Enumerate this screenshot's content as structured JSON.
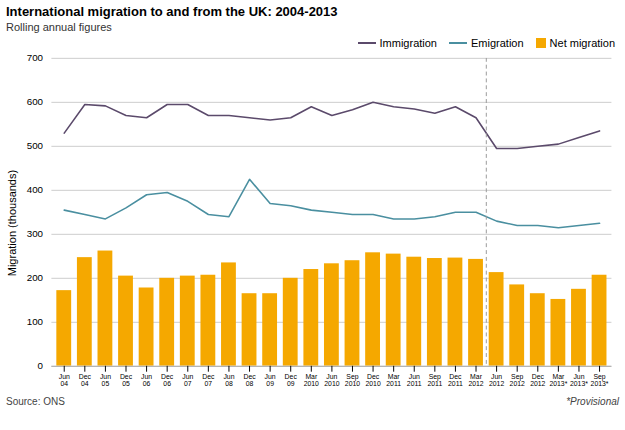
{
  "chart_data": {
    "type": "bar",
    "title": "International migration to and from the UK: 2004-2013",
    "subtitle": "Rolling annual figures",
    "ylabel": "Migration (thousands)",
    "source": "Source: ONS",
    "note": "*Provisional",
    "categories": [
      "Jun\n04",
      "Dec\n04",
      "Jun\n05",
      "Dec\n05",
      "Jun\n06",
      "Dec\n06",
      "Jun\n07",
      "Dec\n07",
      "Jun\n08",
      "Dec\n08",
      "Jun\n09",
      "Dec\n09",
      "Mar\n2010",
      "Jun\n2010",
      "Sep\n2010",
      "Dec\n2010",
      "Mar\n2011",
      "Jun\n2011",
      "Sep\n2011",
      "Dec\n2011",
      "Mar\n2012",
      "Jun\n2012",
      "Sep\n2012",
      "Dec\n2012",
      "Mar\n2013*",
      "Jun\n2013*",
      "Sep\n2013*"
    ],
    "series": [
      {
        "name": "Immigration",
        "type": "line",
        "color": "#5b4a6b",
        "values": [
          530,
          595,
          592,
          570,
          565,
          595,
          595,
          570,
          570,
          565,
          560,
          565,
          590,
          570,
          583,
          600,
          590,
          585,
          575,
          590,
          565,
          495,
          495,
          500,
          505,
          520,
          535
        ]
      },
      {
        "name": "Emigration",
        "type": "line",
        "color": "#4a8fa0",
        "values": [
          355,
          345,
          335,
          360,
          390,
          395,
          375,
          345,
          340,
          425,
          370,
          365,
          355,
          350,
          345,
          345,
          335,
          335,
          340,
          350,
          350,
          330,
          320,
          320,
          315,
          320,
          325
        ]
      },
      {
        "name": "Net migration",
        "type": "bar",
        "color": "#f5a800",
        "values": [
          172,
          247,
          262,
          205,
          178,
          200,
          205,
          207,
          235,
          165,
          165,
          200,
          220,
          233,
          240,
          258,
          255,
          248,
          245,
          246,
          243,
          213,
          185,
          165,
          152,
          175,
          207
        ]
      }
    ],
    "vlines": [
      {
        "x": 20.5,
        "color": "#999999",
        "line_style": "dashed"
      }
    ],
    "ylim": [
      0,
      700
    ],
    "yticks": [
      0,
      100,
      200,
      300,
      400,
      500,
      600,
      700
    ],
    "grid": true,
    "legend": "upper right"
  }
}
